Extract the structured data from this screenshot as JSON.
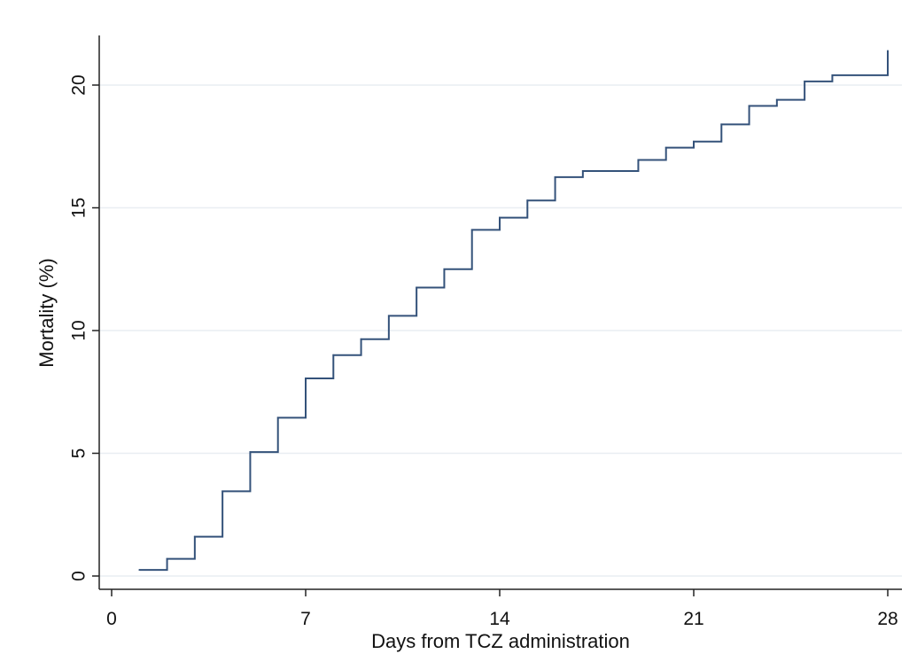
{
  "chart_data": {
    "type": "line",
    "title": "",
    "xlabel": "Days from TCZ administration",
    "ylabel": "Mortality (%)",
    "xlim": [
      0,
      28
    ],
    "ylim": [
      0,
      21.5
    ],
    "xticks": [
      0,
      7,
      14,
      21,
      28
    ],
    "yticks": [
      0,
      5,
      10,
      15,
      20
    ],
    "grid": "horizontal",
    "line_color": "#34527a",
    "series": [
      {
        "step": "post",
        "x": [
          1,
          2,
          3,
          4,
          5,
          6,
          7,
          8,
          9,
          10,
          11,
          12,
          13,
          14,
          15,
          16,
          17,
          19,
          20,
          21,
          22,
          23,
          24,
          25,
          26,
          28
        ],
        "values": [
          0.25,
          0.7,
          1.6,
          3.45,
          5.05,
          6.45,
          8.05,
          9.0,
          9.65,
          10.6,
          11.75,
          12.5,
          14.1,
          14.6,
          15.3,
          16.25,
          16.5,
          16.95,
          17.45,
          17.7,
          18.4,
          19.15,
          19.4,
          20.15,
          20.4,
          21.4
        ]
      }
    ]
  }
}
